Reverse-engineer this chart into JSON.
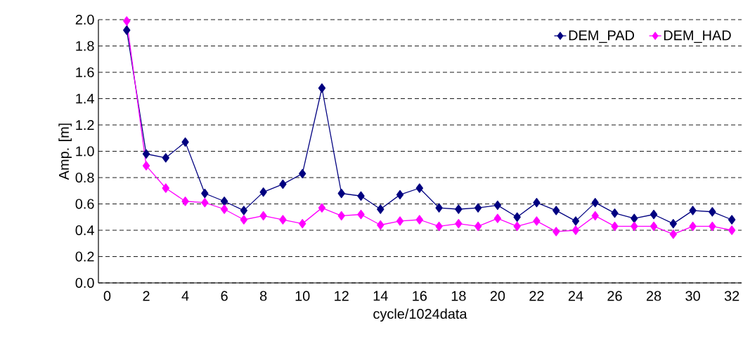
{
  "chart_data": {
    "type": "line",
    "xlabel": "cycle/1024data",
    "ylabel": "Amp. [m]",
    "x": [
      1,
      2,
      3,
      4,
      5,
      6,
      7,
      8,
      9,
      10,
      11,
      12,
      13,
      14,
      15,
      16,
      17,
      18,
      19,
      20,
      21,
      22,
      23,
      24,
      25,
      26,
      27,
      28,
      29,
      30,
      31,
      32
    ],
    "series": [
      {
        "name": "DEM_PAD",
        "color": "#000080",
        "values": [
          1.92,
          0.98,
          0.95,
          1.07,
          0.68,
          0.62,
          0.55,
          0.69,
          0.75,
          0.83,
          1.48,
          0.68,
          0.66,
          0.56,
          0.67,
          0.72,
          0.57,
          0.56,
          0.57,
          0.59,
          0.5,
          0.61,
          0.55,
          0.47,
          0.61,
          0.53,
          0.49,
          0.52,
          0.45,
          0.55,
          0.54,
          0.48
        ]
      },
      {
        "name": "DEM_HAD",
        "color": "#ff00ff",
        "values": [
          1.99,
          0.89,
          0.72,
          0.62,
          0.61,
          0.56,
          0.48,
          0.51,
          0.48,
          0.45,
          0.57,
          0.51,
          0.52,
          0.44,
          0.47,
          0.48,
          0.43,
          0.45,
          0.43,
          0.49,
          0.43,
          0.47,
          0.39,
          0.4,
          0.51,
          0.43,
          0.43,
          0.43,
          0.37,
          0.43,
          0.43,
          0.4
        ]
      }
    ],
    "xlim": [
      -0.45,
      32.5
    ],
    "xticks": [
      0,
      2,
      4,
      6,
      8,
      10,
      12,
      14,
      16,
      18,
      20,
      22,
      24,
      26,
      28,
      30,
      32
    ],
    "ylim": [
      0,
      2
    ],
    "yticks": [
      {
        "value": 0,
        "label": "0.0"
      },
      0.2,
      0.4,
      0.6,
      0.8,
      {
        "value": 1,
        "label": "1.0"
      },
      1.2,
      1.4,
      1.6,
      1.8,
      {
        "value": 2,
        "label": "2.0"
      }
    ],
    "grid": "y",
    "legend": "top right",
    "marker": "diamond",
    "line_style": "solid"
  }
}
